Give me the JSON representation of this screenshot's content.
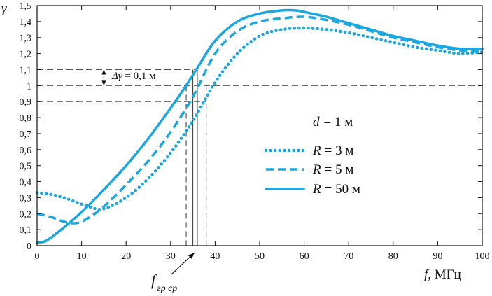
{
  "chart_data": {
    "type": "line",
    "xlabel": "f",
    "xunit": ", МГц",
    "ylabel": "γ",
    "xlim": [
      0,
      100
    ],
    "ylim": [
      0,
      1.5
    ],
    "xticks": [
      "0",
      "10",
      "20",
      "30",
      "40",
      "50",
      "60",
      "70",
      "80",
      "90",
      "100"
    ],
    "yticks": [
      "0",
      "0,1",
      "0,2",
      "0,3",
      "0,4",
      "0,5",
      "0,6",
      "0,7",
      "0,8",
      "0,9",
      "1",
      "1,1",
      "1,2",
      "1,3",
      "1,4",
      "1,5"
    ],
    "param_label": "d",
    "param_value": "= 1 м",
    "series": [
      {
        "name": "R = 3 м",
        "sym": "R",
        "val": "= 3 м",
        "style": "dotted",
        "color": "#1aa7df",
        "x": [
          0,
          3,
          6,
          9,
          12,
          15,
          20,
          25,
          30,
          35,
          40,
          45,
          50,
          55,
          60,
          65,
          70,
          75,
          80,
          85,
          90,
          95,
          100
        ],
        "y": [
          0.33,
          0.32,
          0.3,
          0.27,
          0.24,
          0.23,
          0.3,
          0.42,
          0.58,
          0.78,
          1.02,
          1.2,
          1.31,
          1.35,
          1.36,
          1.35,
          1.33,
          1.3,
          1.27,
          1.24,
          1.22,
          1.2,
          1.21
        ]
      },
      {
        "name": "R = 5 м",
        "sym": "R",
        "val": "= 5 м",
        "style": "dashed",
        "color": "#1aa7df",
        "x": [
          0,
          3,
          6,
          8,
          10,
          13,
          16,
          20,
          25,
          30,
          35,
          40,
          45,
          50,
          55,
          60,
          65,
          70,
          75,
          80,
          85,
          90,
          95,
          100
        ],
        "y": [
          0.2,
          0.18,
          0.15,
          0.14,
          0.15,
          0.2,
          0.27,
          0.38,
          0.53,
          0.71,
          0.93,
          1.2,
          1.34,
          1.4,
          1.42,
          1.43,
          1.41,
          1.38,
          1.34,
          1.3,
          1.27,
          1.24,
          1.22,
          1.21
        ]
      },
      {
        "name": "R = 50 м",
        "sym": "R",
        "val": "= 50 м",
        "style": "solid",
        "color": "#1aa7df",
        "x": [
          0,
          2,
          5,
          10,
          15,
          20,
          25,
          30,
          33,
          36,
          40,
          45,
          50,
          55,
          58,
          60,
          65,
          70,
          75,
          80,
          85,
          90,
          95,
          100
        ],
        "y": [
          0.02,
          0.03,
          0.09,
          0.21,
          0.35,
          0.5,
          0.67,
          0.86,
          0.98,
          1.11,
          1.28,
          1.4,
          1.45,
          1.47,
          1.47,
          1.46,
          1.43,
          1.39,
          1.35,
          1.31,
          1.28,
          1.25,
          1.23,
          1.23
        ]
      }
    ],
    "reference_lines": {
      "h_dashed": [
        1.1,
        1.0
      ],
      "h_dashed_end": [
        36,
        100
      ],
      "h_solid": 0.9,
      "h_solid_end": 38,
      "v_dashed": [
        33.5,
        38
      ],
      "v_solid": [
        35,
        36
      ]
    },
    "delta_gamma": {
      "prefix": "Δγ",
      "suffix": " = 0,1 м",
      "at_x": 15,
      "from": 1.0,
      "to": 1.1
    },
    "annotation": {
      "base": "f",
      "sub": "гр ср",
      "arrow_to_x": 36
    }
  }
}
